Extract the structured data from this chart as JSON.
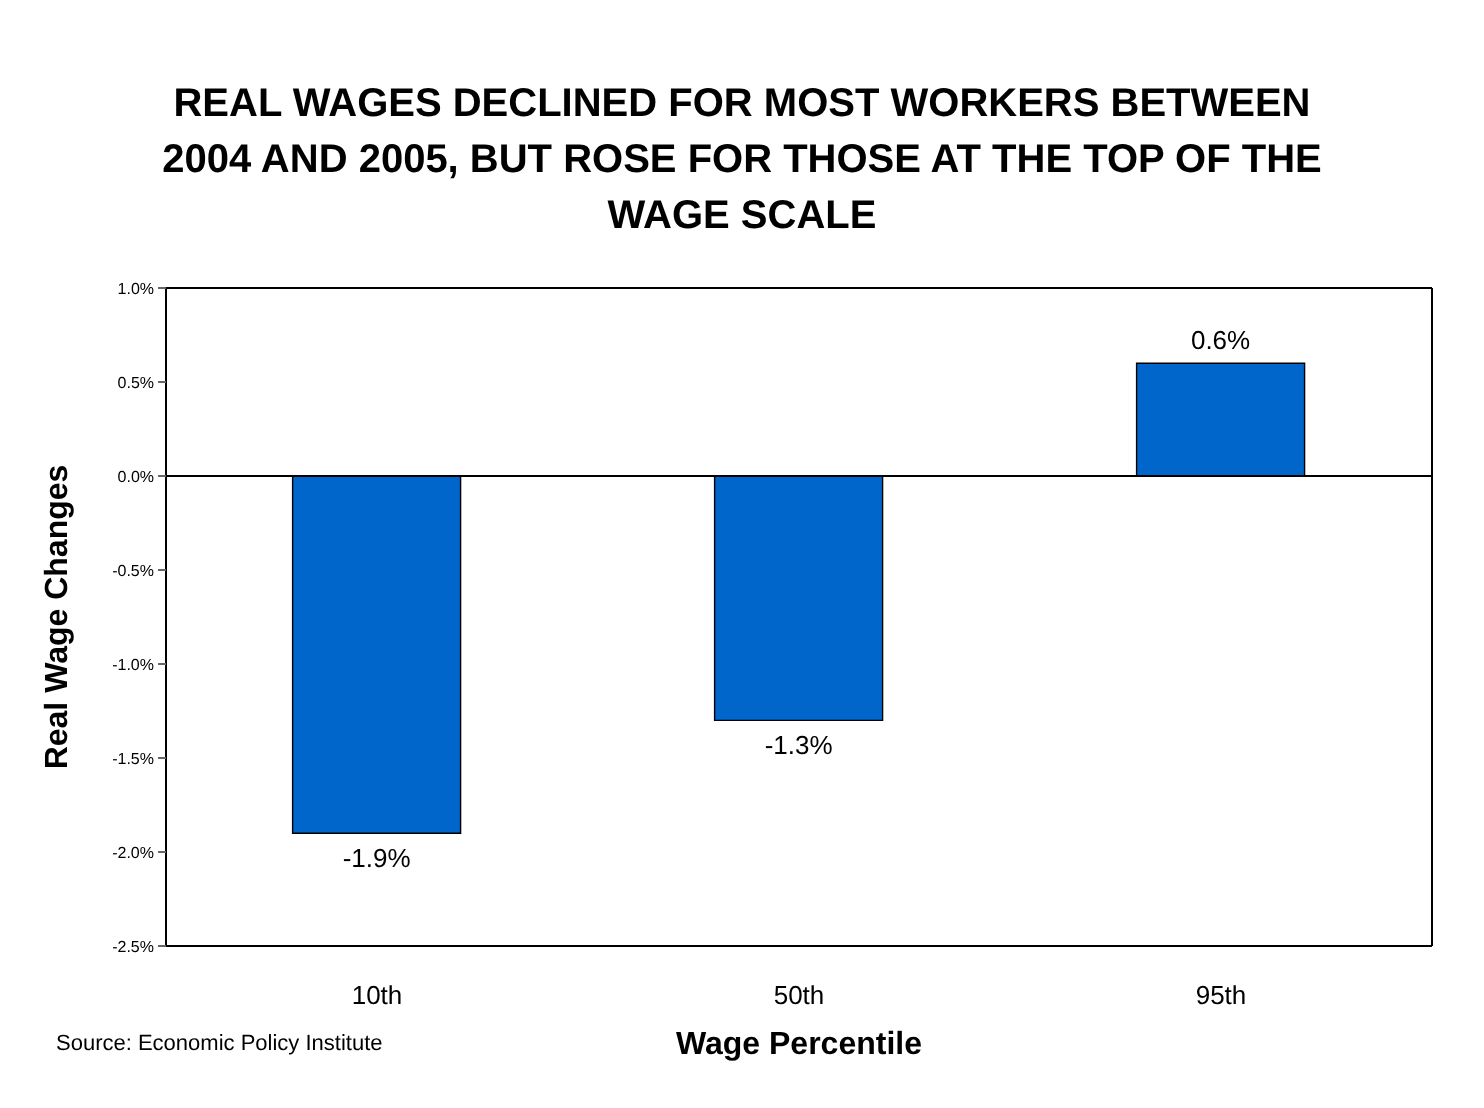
{
  "chart_data": {
    "type": "bar",
    "title": "REAL WAGES DECLINED FOR MOST WORKERS BETWEEN 2004 AND 2005, BUT ROSE FOR THOSE AT THE TOP OF THE WAGE SCALE",
    "xlabel": "Wage Percentile",
    "ylabel": "Real Wage Changes",
    "annotations": [
      "Source: Economic Policy Institute"
    ],
    "categories": [
      "10th",
      "50th",
      "95th"
    ],
    "values": [
      -1.9,
      -1.3,
      0.6
    ],
    "color": "#0066cc",
    "value_labels": [
      "-1.9%",
      "-1.3%",
      "0.6%"
    ],
    "ylim": [
      -2.5,
      1.0
    ],
    "yticks": [
      {
        "value": -2.5,
        "label": "-2.5%"
      },
      {
        "value": -2.0,
        "label": "-2.0%"
      },
      {
        "value": -1.5,
        "label": "-1.5%"
      },
      {
        "value": -1.0,
        "label": "-1.0%"
      },
      {
        "value": -0.5,
        "label": "-0.5%"
      },
      {
        "value": 0,
        "label": "0.0%"
      },
      {
        "value": 0.5,
        "label": "0.5%"
      },
      {
        "value": 1.0,
        "label": "1.0%"
      }
    ],
    "legend": false
  }
}
